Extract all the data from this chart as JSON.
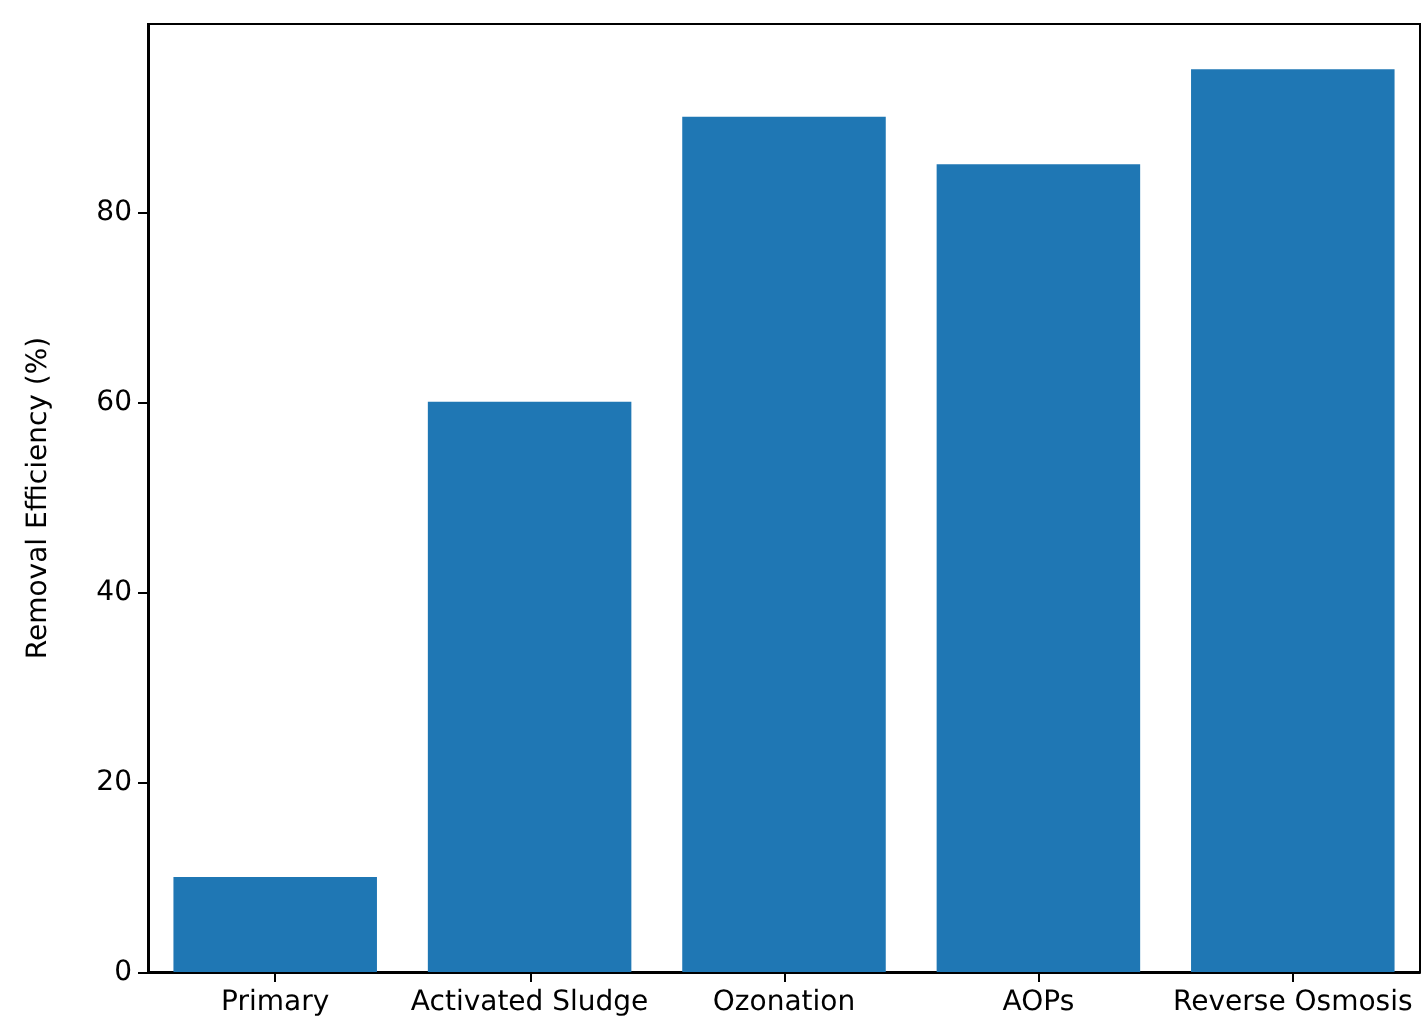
{
  "chart_data": {
    "type": "bar",
    "ylabel": "Removal Efficiency (%)",
    "categories": [
      "Primary",
      "Activated Sludge",
      "Ozonation",
      "AOPs",
      "Reverse Osmosis"
    ],
    "values": [
      10,
      60,
      90,
      85,
      95
    ],
    "color": "#1f77b4",
    "ylim": [
      0,
      99.75
    ],
    "yticks": [
      0,
      20,
      40,
      60,
      80
    ],
    "grid": false
  }
}
